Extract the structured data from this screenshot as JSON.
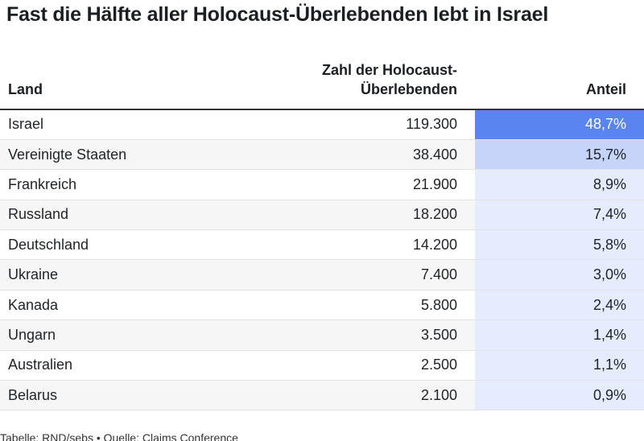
{
  "title": "Fast die Hälfte aller Holocaust-Überlebenden lebt in Israel",
  "footer": "Tabelle: RND/sebs • Quelle: Claims Conference",
  "colors": {
    "heat_low": "#e6ecfd",
    "heat_mid": "#c6d4f9",
    "heat_high": "#5a84f0"
  },
  "chart_data": {
    "type": "table",
    "title": "Fast die Hälfte aller Holocaust-Überlebenden lebt in Israel",
    "columns": [
      "Land",
      "Zahl der Holocaust-Überlebenden",
      "Anteil"
    ],
    "header_lines": {
      "land": [
        "Land"
      ],
      "count": [
        "Zahl der Holocaust-",
        "Überlebenden"
      ],
      "share": [
        "Anteil"
      ]
    },
    "rows": [
      {
        "land": "Israel",
        "count": "119.300",
        "share": "48,7%",
        "share_value": 48.7
      },
      {
        "land": "Vereinigte Staaten",
        "count": "38.400",
        "share": "15,7%",
        "share_value": 15.7
      },
      {
        "land": "Frankreich",
        "count": "21.900",
        "share": "8,9%",
        "share_value": 8.9
      },
      {
        "land": "Russland",
        "count": "18.200",
        "share": "7,4%",
        "share_value": 7.4
      },
      {
        "land": "Deutschland",
        "count": "14.200",
        "share": "5,8%",
        "share_value": 5.8
      },
      {
        "land": "Ukraine",
        "count": "7.400",
        "share": "3,0%",
        "share_value": 3.0
      },
      {
        "land": "Kanada",
        "count": "5.800",
        "share": "2,4%",
        "share_value": 2.4
      },
      {
        "land": "Ungarn",
        "count": "3.500",
        "share": "1,4%",
        "share_value": 1.4
      },
      {
        "land": "Australien",
        "count": "2.500",
        "share": "1,1%",
        "share_value": 1.1
      },
      {
        "land": "Belarus",
        "count": "2.100",
        "share": "0,9%",
        "share_value": 0.9
      }
    ]
  }
}
